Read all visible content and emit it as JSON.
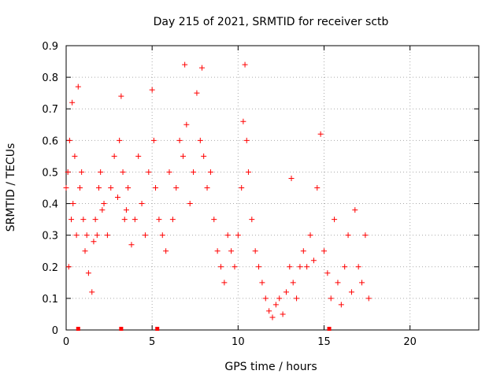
{
  "chart_data": {
    "type": "scatter",
    "title": "Day 215 of 2021, SRMTID for receiver sctb",
    "xlabel": "GPS time / hours",
    "ylabel": "SRMTID / TECUs",
    "xlim": [
      0,
      24
    ],
    "ylim": [
      0,
      0.9
    ],
    "x_ticks": [
      0,
      5,
      10,
      15,
      20
    ],
    "y_ticks": [
      0,
      0.1,
      0.2,
      0.3,
      0.4,
      0.5,
      0.6,
      0.7,
      0.8,
      0.9
    ],
    "x_tick_labels": [
      "0",
      "5",
      "10",
      "15",
      "20"
    ],
    "y_tick_labels": [
      "0",
      "0.1",
      "0.2",
      "0.3",
      "0.4",
      "0.5",
      "0.6",
      "0.7",
      "0.8",
      "0.9"
    ],
    "grid": true,
    "marker": "+",
    "marker_color": "#ff0000",
    "series": [
      {
        "name": "SRMTID",
        "x": [
          0.0,
          0.1,
          0.15,
          0.2,
          0.3,
          0.35,
          0.4,
          0.5,
          0.6,
          0.7,
          0.8,
          0.9,
          1.0,
          1.1,
          1.2,
          1.3,
          1.5,
          1.6,
          1.7,
          1.8,
          1.9,
          2.0,
          2.1,
          2.2,
          2.4,
          2.6,
          2.8,
          3.0,
          3.1,
          3.2,
          3.3,
          3.4,
          3.5,
          3.6,
          3.8,
          4.0,
          4.2,
          4.4,
          4.6,
          4.8,
          5.0,
          5.1,
          5.2,
          5.4,
          5.6,
          5.8,
          6.0,
          6.2,
          6.4,
          6.6,
          6.8,
          6.9,
          7.0,
          7.2,
          7.4,
          7.6,
          7.8,
          7.9,
          8.0,
          8.2,
          8.4,
          8.6,
          8.8,
          9.0,
          9.2,
          9.4,
          9.6,
          9.8,
          10.0,
          10.2,
          10.3,
          10.4,
          10.5,
          10.6,
          10.8,
          11.0,
          11.2,
          11.4,
          11.6,
          11.8,
          12.0,
          12.2,
          12.4,
          12.6,
          12.8,
          13.0,
          13.1,
          13.2,
          13.4,
          13.6,
          13.8,
          14.0,
          14.2,
          14.4,
          14.6,
          14.8,
          15.0,
          15.2,
          15.4,
          15.6,
          15.8,
          16.0,
          16.2,
          16.4,
          16.6,
          16.8,
          17.0,
          17.2,
          17.4,
          17.6
        ],
        "y": [
          0.45,
          0.5,
          0.2,
          0.6,
          0.35,
          0.72,
          0.4,
          0.55,
          0.3,
          0.77,
          0.45,
          0.5,
          0.35,
          0.25,
          0.3,
          0.18,
          0.12,
          0.28,
          0.35,
          0.3,
          0.45,
          0.5,
          0.38,
          0.4,
          0.3,
          0.45,
          0.55,
          0.42,
          0.6,
          0.74,
          0.5,
          0.35,
          0.38,
          0.45,
          0.27,
          0.35,
          0.55,
          0.4,
          0.3,
          0.5,
          0.76,
          0.6,
          0.45,
          0.35,
          0.3,
          0.25,
          0.5,
          0.35,
          0.45,
          0.6,
          0.55,
          0.84,
          0.65,
          0.4,
          0.5,
          0.75,
          0.6,
          0.83,
          0.55,
          0.45,
          0.5,
          0.35,
          0.25,
          0.2,
          0.15,
          0.3,
          0.25,
          0.2,
          0.3,
          0.45,
          0.66,
          0.84,
          0.6,
          0.5,
          0.35,
          0.25,
          0.2,
          0.15,
          0.1,
          0.06,
          0.04,
          0.08,
          0.1,
          0.05,
          0.12,
          0.2,
          0.48,
          0.15,
          0.1,
          0.2,
          0.25,
          0.2,
          0.3,
          0.22,
          0.45,
          0.62,
          0.25,
          0.18,
          0.1,
          0.35,
          0.15,
          0.08,
          0.2,
          0.3,
          0.12,
          0.38,
          0.2,
          0.15,
          0.3,
          0.1
        ]
      }
    ],
    "markers_on_axis_x": [
      0.7,
      3.2,
      5.3,
      15.3
    ]
  }
}
